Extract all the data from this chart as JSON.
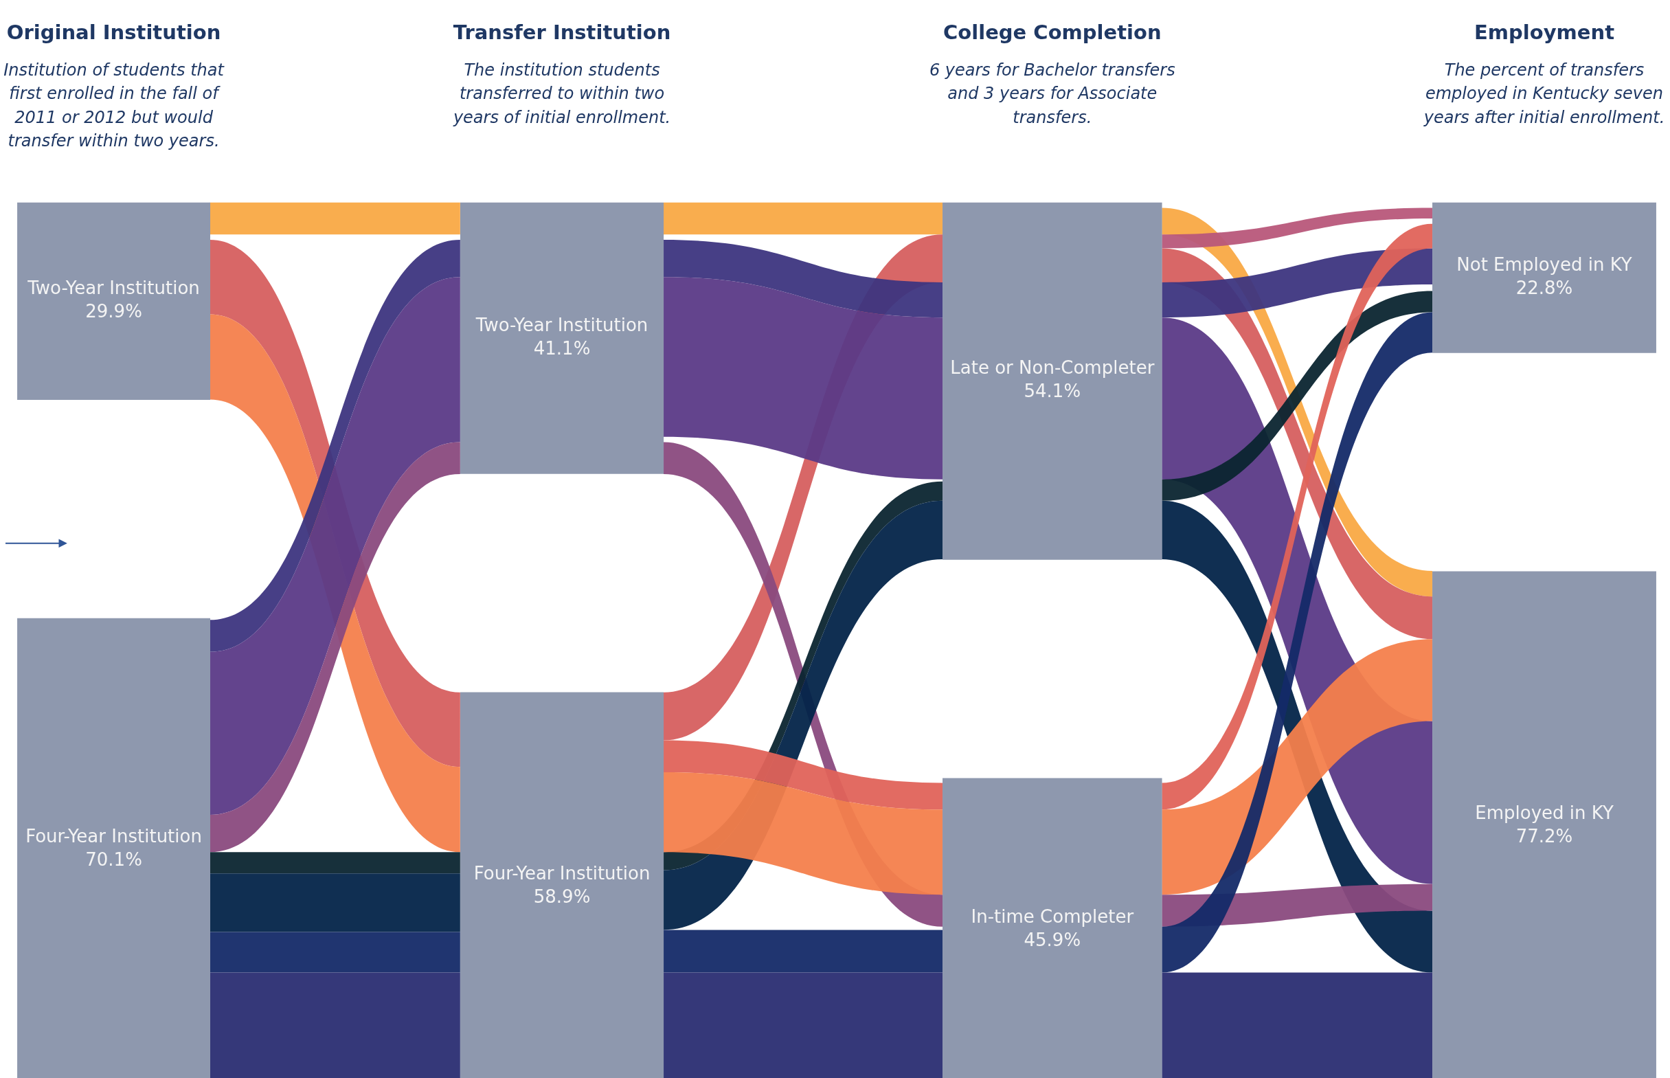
{
  "chart_data": [
    {
      "type": "other",
      "title": "Original Institution",
      "subtitle": "Institution of students that first enrolled in the fall of 2011 or 2012 but would transfer within two years.",
      "categories": [
        "Two-Year Institution",
        "Four-Year Institution"
      ],
      "values": [
        29.9,
        70.1
      ],
      "value_labels": [
        "29.9%",
        "70.1%"
      ]
    },
    {
      "type": "other",
      "title": "Transfer Institution",
      "subtitle": "The institution students transferred to within two years of initial enrollment.",
      "categories": [
        "Two-Year Institution",
        "Four-Year Institution"
      ],
      "values": [
        41.1,
        58.9
      ],
      "value_labels": [
        "41.1%",
        "58.9%"
      ]
    },
    {
      "type": "other",
      "title": "College Completion",
      "subtitle": "6 years for Bachelor transfers and 3 years for Associate transfers.",
      "categories": [
        "Late or Non-Completer",
        "In-time Completer"
      ],
      "values": [
        54.1,
        45.9
      ],
      "value_labels": [
        "54.1%",
        "45.9%"
      ]
    },
    {
      "type": "other",
      "title": "Employment",
      "subtitle": "The percent of transfers employed in Kentucky seven years after initial enrollment.",
      "categories": [
        "Not Employed in KY",
        "Employed in KY"
      ],
      "values": [
        22.8,
        77.2
      ],
      "value_labels": [
        "22.8%",
        "77.2%"
      ]
    }
  ]
}
